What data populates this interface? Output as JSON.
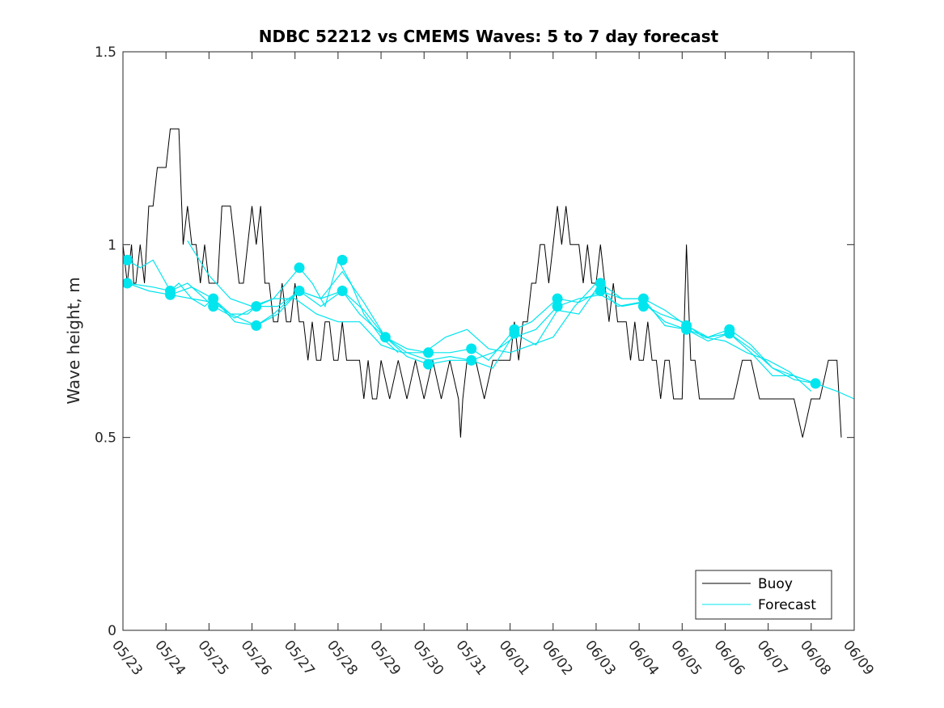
{
  "chart_data": {
    "type": "line",
    "title": "NDBC 52212 vs CMEMS Waves: 5 to 7 day forecast",
    "xlabel": "",
    "ylabel": "Wave height, m",
    "x_tick_labels": [
      "05/23",
      "05/24",
      "05/25",
      "05/26",
      "05/27",
      "05/28",
      "05/29",
      "05/30",
      "05/31",
      "06/01",
      "06/02",
      "06/03",
      "06/04",
      "06/05",
      "06/06",
      "06/07",
      "06/08",
      "06/09"
    ],
    "x_tick_days": [
      0,
      1,
      2,
      3,
      4,
      5,
      6,
      7,
      8,
      9,
      10,
      11,
      12,
      13,
      14,
      15,
      16,
      17
    ],
    "xlim_days": [
      0,
      17
    ],
    "ylim": [
      0,
      1.5
    ],
    "y_ticks": [
      0,
      0.5,
      1,
      1.5
    ],
    "y_tick_labels": [
      "0",
      "0.5",
      "1",
      "1.5"
    ],
    "grid": false,
    "legend": {
      "position": "bottom-right",
      "entries": [
        "Buoy",
        "Forecast"
      ]
    },
    "colors": {
      "buoy": "#000000",
      "forecast": "#00e5ee",
      "axes": "#262626"
    },
    "series": [
      {
        "name": "Buoy",
        "x": [
          0,
          0.1,
          0.2,
          0.25,
          0.3,
          0.4,
          0.5,
          0.6,
          0.7,
          0.8,
          0.9,
          1.0,
          1.1,
          1.2,
          1.3,
          1.4,
          1.5,
          1.6,
          1.7,
          1.8,
          1.9,
          2.0,
          2.1,
          2.2,
          2.3,
          2.4,
          2.5,
          2.6,
          2.7,
          2.8,
          2.9,
          3.0,
          3.1,
          3.2,
          3.3,
          3.4,
          3.5,
          3.6,
          3.7,
          3.8,
          3.9,
          4.0,
          4.1,
          4.2,
          4.3,
          4.4,
          4.5,
          4.6,
          4.7,
          4.8,
          4.9,
          5.0,
          5.1,
          5.2,
          5.3,
          5.4,
          5.5,
          5.6,
          5.7,
          5.8,
          5.9,
          6.0,
          6.2,
          6.4,
          6.6,
          6.8,
          7.0,
          7.2,
          7.4,
          7.6,
          7.8,
          7.85,
          7.9,
          8.0,
          8.2,
          8.4,
          8.6,
          8.8,
          9.0,
          9.1,
          9.2,
          9.3,
          9.4,
          9.5,
          9.6,
          9.7,
          9.8,
          9.9,
          10.0,
          10.1,
          10.2,
          10.3,
          10.4,
          10.5,
          10.6,
          10.7,
          10.8,
          10.9,
          11.0,
          11.1,
          11.2,
          11.3,
          11.4,
          11.5,
          11.6,
          11.7,
          11.8,
          11.9,
          12.0,
          12.1,
          12.2,
          12.3,
          12.4,
          12.5,
          12.6,
          12.7,
          12.8,
          12.9,
          13.0,
          13.1,
          13.2,
          13.3,
          13.4,
          13.6,
          13.8,
          14.0,
          14.2,
          14.4,
          14.6,
          14.8,
          15.0,
          15.2,
          15.4,
          15.6,
          15.8,
          16.0,
          16.2,
          16.4,
          16.6,
          16.7
        ],
        "y": [
          1.0,
          0.9,
          1.0,
          0.9,
          0.9,
          1.0,
          0.9,
          1.1,
          1.1,
          1.2,
          1.2,
          1.2,
          1.3,
          1.3,
          1.3,
          1.0,
          1.1,
          1.0,
          1.0,
          0.9,
          1.0,
          0.9,
          0.9,
          0.9,
          1.1,
          1.1,
          1.1,
          1.0,
          0.9,
          0.9,
          1.0,
          1.1,
          1.0,
          1.1,
          0.9,
          0.9,
          0.8,
          0.8,
          0.9,
          0.8,
          0.8,
          0.9,
          0.8,
          0.8,
          0.7,
          0.8,
          0.7,
          0.7,
          0.8,
          0.8,
          0.7,
          0.7,
          0.8,
          0.7,
          0.7,
          0.7,
          0.7,
          0.6,
          0.7,
          0.6,
          0.6,
          0.7,
          0.6,
          0.7,
          0.6,
          0.7,
          0.6,
          0.7,
          0.6,
          0.7,
          0.6,
          0.5,
          0.6,
          0.7,
          0.7,
          0.6,
          0.7,
          0.7,
          0.7,
          0.8,
          0.7,
          0.8,
          0.8,
          0.9,
          0.9,
          1.0,
          1.0,
          0.9,
          1.0,
          1.1,
          1.0,
          1.1,
          1.0,
          1.0,
          1.0,
          0.9,
          1.0,
          0.9,
          0.9,
          1.0,
          0.9,
          0.8,
          0.9,
          0.8,
          0.8,
          0.8,
          0.7,
          0.8,
          0.7,
          0.7,
          0.8,
          0.7,
          0.7,
          0.6,
          0.7,
          0.7,
          0.6,
          0.6,
          0.6,
          1.0,
          0.7,
          0.7,
          0.6,
          0.6,
          0.6,
          0.6,
          0.6,
          0.7,
          0.7,
          0.6,
          0.6,
          0.6,
          0.6,
          0.6,
          0.5,
          0.6,
          0.6,
          0.7,
          0.7,
          0.5
        ]
      },
      {
        "name": "Forecast",
        "runs": [
          {
            "x": [
              0.1,
              0.4,
              0.7,
              0.9,
              1.1,
              1.3,
              1.6,
              1.9,
              2.1,
              2.5,
              2.9,
              3.1,
              3.5,
              3.8,
              4.1,
              4.4,
              4.7,
              5.0,
              5.3,
              5.6,
              6.0,
              6.4
            ],
            "y": [
              0.96,
              0.94,
              0.96,
              0.92,
              0.88,
              0.9,
              0.86,
              0.84,
              0.86,
              0.82,
              0.82,
              0.84,
              0.86,
              0.9,
              0.94,
              0.9,
              0.84,
              0.96,
              0.9,
              0.82,
              0.76,
              0.72
            ]
          },
          {
            "x": [
              0.1,
              0.6,
              1.1,
              1.6,
              2.1,
              2.5,
              3.1,
              3.5,
              4.1,
              4.6,
              5.1,
              5.5,
              6.1,
              6.6,
              7.1,
              7.6,
              8.1,
              8.5,
              9.1,
              9.5,
              10.1,
              10.6,
              11.1,
              11.6,
              12.1,
              12.6,
              13.1,
              13.6,
              14.1,
              14.6,
              15.1,
              15.6,
              16.1,
              16.6,
              17.0
            ],
            "y": [
              0.9,
              0.88,
              0.87,
              0.86,
              0.85,
              0.82,
              0.79,
              0.82,
              0.88,
              0.86,
              0.88,
              0.82,
              0.76,
              0.73,
              0.72,
              0.72,
              0.73,
              0.7,
              0.78,
              0.8,
              0.86,
              0.85,
              0.88,
              0.86,
              0.86,
              0.83,
              0.79,
              0.76,
              0.78,
              0.74,
              0.68,
              0.66,
              0.64,
              0.62,
              0.6
            ]
          },
          {
            "x": [
              0.1,
              0.7,
              1.1,
              1.5,
              2.1,
              2.6,
              3.1,
              3.6,
              4.1,
              4.6,
              5.1,
              5.6,
              6.1,
              6.6,
              7.1,
              7.6,
              8.1,
              8.6,
              9.1,
              9.6,
              10.1,
              10.6,
              11.1,
              11.6,
              12.1,
              12.6,
              13.1,
              13.6,
              14.1,
              14.6,
              15.1,
              15.6,
              16.1
            ],
            "y": [
              0.9,
              0.89,
              0.88,
              0.9,
              0.84,
              0.81,
              0.84,
              0.84,
              0.88,
              0.86,
              0.93,
              0.85,
              0.76,
              0.72,
              0.7,
              0.71,
              0.7,
              0.72,
              0.76,
              0.78,
              0.84,
              0.86,
              0.87,
              0.84,
              0.85,
              0.8,
              0.78,
              0.75,
              0.77,
              0.73,
              0.68,
              0.65,
              0.64
            ]
          },
          {
            "x": [
              1.1,
              1.6,
              2.1,
              2.6,
              3.1,
              3.6,
              4.1,
              4.6,
              5.1,
              5.6,
              6.1,
              6.6,
              7.1,
              7.6,
              8.1,
              8.6,
              9.1,
              9.6,
              10.1,
              10.6,
              11.1,
              11.6,
              12.1,
              12.6,
              13.1,
              13.6,
              14.1,
              14.6,
              15.1,
              15.6,
              16.1
            ],
            "y": [
              0.87,
              0.89,
              0.86,
              0.8,
              0.79,
              0.82,
              0.88,
              0.84,
              0.88,
              0.83,
              0.76,
              0.71,
              0.69,
              0.7,
              0.7,
              0.68,
              0.77,
              0.74,
              0.83,
              0.82,
              0.9,
              0.86,
              0.86,
              0.79,
              0.78,
              0.76,
              0.77,
              0.72,
              0.66,
              0.66,
              0.64
            ]
          },
          {
            "x": [
              1.5,
              2.0,
              2.5,
              3.0,
              3.5,
              4.0,
              4.5,
              5.0,
              5.5,
              6.0,
              6.5,
              7.0,
              7.5,
              8.0,
              8.5,
              9.0,
              9.5,
              10.0,
              10.5,
              11.0,
              11.5,
              12.0,
              12.5,
              13.0,
              13.5,
              14.0,
              14.5,
              15.0,
              15.5,
              16.0
            ],
            "y": [
              1.01,
              0.92,
              0.86,
              0.84,
              0.86,
              0.86,
              0.82,
              0.8,
              0.8,
              0.74,
              0.72,
              0.72,
              0.76,
              0.78,
              0.73,
              0.72,
              0.74,
              0.76,
              0.84,
              0.9,
              0.84,
              0.85,
              0.82,
              0.8,
              0.76,
              0.75,
              0.72,
              0.7,
              0.67,
              0.62
            ]
          }
        ],
        "markers": {
          "x": [
            0.1,
            0.1,
            1.1,
            1.1,
            2.1,
            2.1,
            3.1,
            3.1,
            4.1,
            4.1,
            5.1,
            5.1,
            6.1,
            7.1,
            7.1,
            8.1,
            8.1,
            9.1,
            9.1,
            10.1,
            10.1,
            11.1,
            11.1,
            12.1,
            12.1,
            13.1,
            13.1,
            14.1,
            14.1,
            16.1
          ],
          "y": [
            0.96,
            0.9,
            0.88,
            0.87,
            0.86,
            0.84,
            0.84,
            0.79,
            0.94,
            0.88,
            0.96,
            0.88,
            0.76,
            0.72,
            0.69,
            0.73,
            0.7,
            0.78,
            0.77,
            0.86,
            0.84,
            0.9,
            0.88,
            0.86,
            0.84,
            0.79,
            0.78,
            0.78,
            0.77,
            0.64
          ]
        }
      }
    ]
  }
}
